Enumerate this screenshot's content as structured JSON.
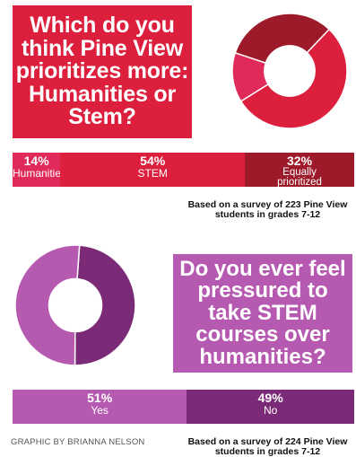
{
  "chart_data": [
    {
      "type": "pie",
      "title": "Which do you think Pine View prioritizes more: Humanities or Stem?",
      "categories": [
        "Humanities",
        "STEM",
        "Equally prioritized"
      ],
      "values": [
        14,
        54,
        32
      ],
      "value_labels": [
        "14%",
        "54%",
        "32%"
      ],
      "colors": [
        "#e02a5a",
        "#dc1f3d",
        "#9c1a29"
      ],
      "note": "Based on a survey of 223 Pine View students in grades 7-12"
    },
    {
      "type": "pie",
      "title": "Do you ever feel pressured to take STEM courses over humanities?",
      "categories": [
        "Yes",
        "No"
      ],
      "values": [
        51,
        49
      ],
      "value_labels": [
        "51%",
        "49%"
      ],
      "colors": [
        "#b65ab1",
        "#7b2a77"
      ],
      "note": "Based on a survey of 224 Pine View students in grades 7-12"
    }
  ],
  "credit": "GRAPHIC BY BRIANNA NELSON"
}
